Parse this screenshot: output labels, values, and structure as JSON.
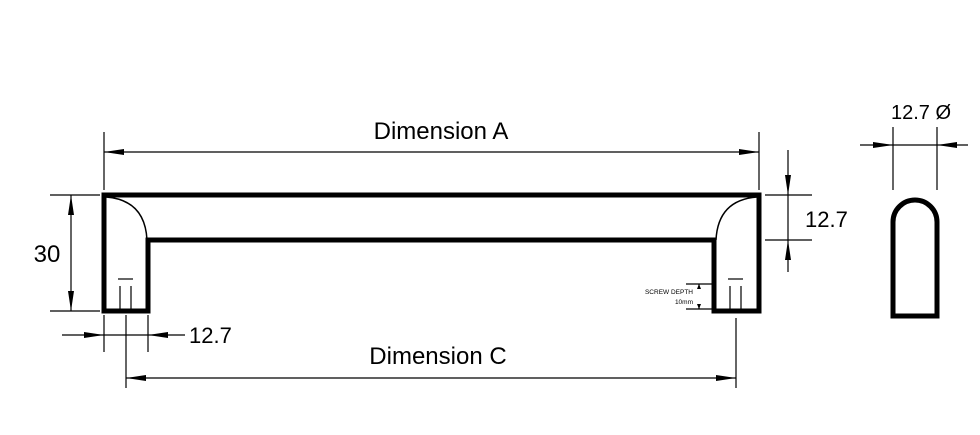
{
  "labels": {
    "dimension_a": "Dimension A",
    "dimension_c": "Dimension C",
    "height": "30",
    "bar_thickness": "12.7",
    "leg_width": "12.7",
    "diameter": "12.7 Ø",
    "screw_depth_title": "SCREW DEPTH",
    "screw_depth_value": "10mm"
  },
  "colors": {
    "line": "#000000",
    "background": "#ffffff"
  }
}
